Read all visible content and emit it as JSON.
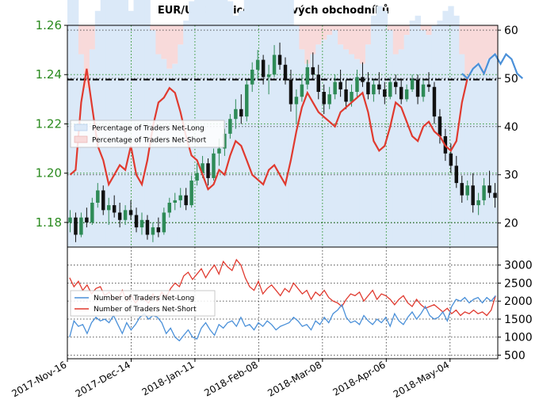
{
  "chart_data": {
    "type": "line",
    "title": "EUR/USD pozice retailových obchodníků",
    "x_tick_labels": [
      "2017-Nov-16",
      "2017-Dec-14",
      "2018-Jan-11",
      "2018-Feb-08",
      "2018-Mar-08",
      "2018-Apr-06",
      "2018-May-04"
    ],
    "colors": {
      "price_up": "#2e8b57",
      "price_down": "#111111",
      "net_long": "#4a90d9",
      "net_short": "#e03a2f",
      "long_fill": "#dbe9f8",
      "short_fill": "#f8dada",
      "grid": "#1e8c1e",
      "price_axis": "#2a8a1e"
    },
    "top_panel": {
      "left_axis": {
        "ylim": [
          1.17,
          1.26
        ],
        "tick_labels": [
          "1.18",
          "1.20",
          "1.22",
          "1.24",
          "1.26"
        ]
      },
      "right_axis": {
        "ylim": [
          15,
          61
        ],
        "tick_labels": [
          "20",
          "30",
          "40",
          "50",
          "60"
        ]
      },
      "reference_line": 1.238,
      "legend": {
        "placement": "left",
        "entries": [
          "Percentage of Traders Net-Long",
          "Percentage of Traders Net-Short"
        ]
      },
      "price_ohlc": [
        [
          1.18,
          1.185,
          1.176,
          1.182
        ],
        [
          1.182,
          1.184,
          1.172,
          1.175
        ],
        [
          1.175,
          1.184,
          1.174,
          1.182
        ],
        [
          1.182,
          1.186,
          1.178,
          1.18
        ],
        [
          1.18,
          1.19,
          1.179,
          1.188
        ],
        [
          1.188,
          1.196,
          1.186,
          1.193
        ],
        [
          1.193,
          1.195,
          1.183,
          1.185
        ],
        [
          1.185,
          1.19,
          1.179,
          1.187
        ],
        [
          1.187,
          1.191,
          1.182,
          1.184
        ],
        [
          1.184,
          1.188,
          1.178,
          1.181
        ],
        [
          1.181,
          1.187,
          1.179,
          1.185
        ],
        [
          1.185,
          1.189,
          1.181,
          1.183
        ],
        [
          1.183,
          1.186,
          1.176,
          1.178
        ],
        [
          1.178,
          1.184,
          1.175,
          1.181
        ],
        [
          1.181,
          1.183,
          1.173,
          1.175
        ],
        [
          1.175,
          1.18,
          1.172,
          1.178
        ],
        [
          1.178,
          1.182,
          1.174,
          1.176
        ],
        [
          1.176,
          1.186,
          1.175,
          1.184
        ],
        [
          1.184,
          1.19,
          1.182,
          1.188
        ],
        [
          1.188,
          1.192,
          1.185,
          1.189
        ],
        [
          1.189,
          1.194,
          1.186,
          1.191
        ],
        [
          1.191,
          1.194,
          1.185,
          1.187
        ],
        [
          1.187,
          1.199,
          1.186,
          1.197
        ],
        [
          1.197,
          1.204,
          1.195,
          1.2
        ],
        [
          1.2,
          1.207,
          1.198,
          1.204
        ],
        [
          1.204,
          1.206,
          1.195,
          1.198
        ],
        [
          1.198,
          1.21,
          1.197,
          1.208
        ],
        [
          1.208,
          1.214,
          1.203,
          1.21
        ],
        [
          1.21,
          1.218,
          1.207,
          1.216
        ],
        [
          1.216,
          1.224,
          1.214,
          1.222
        ],
        [
          1.222,
          1.23,
          1.218,
          1.226
        ],
        [
          1.226,
          1.232,
          1.22,
          1.223
        ],
        [
          1.223,
          1.238,
          1.221,
          1.236
        ],
        [
          1.236,
          1.245,
          1.233,
          1.242
        ],
        [
          1.242,
          1.25,
          1.238,
          1.246
        ],
        [
          1.246,
          1.248,
          1.236,
          1.239
        ],
        [
          1.239,
          1.244,
          1.232,
          1.24
        ],
        [
          1.24,
          1.252,
          1.239,
          1.248
        ],
        [
          1.248,
          1.253,
          1.242,
          1.244
        ],
        [
          1.244,
          1.247,
          1.236,
          1.238
        ],
        [
          1.238,
          1.242,
          1.225,
          1.228
        ],
        [
          1.228,
          1.234,
          1.22,
          1.231
        ],
        [
          1.231,
          1.24,
          1.229,
          1.236
        ],
        [
          1.236,
          1.246,
          1.234,
          1.243
        ],
        [
          1.243,
          1.249,
          1.238,
          1.24
        ],
        [
          1.24,
          1.244,
          1.23,
          1.233
        ],
        [
          1.233,
          1.236,
          1.224,
          1.228
        ],
        [
          1.228,
          1.235,
          1.226,
          1.232
        ],
        [
          1.232,
          1.24,
          1.23,
          1.237
        ],
        [
          1.237,
          1.242,
          1.231,
          1.234
        ],
        [
          1.234,
          1.238,
          1.226,
          1.229
        ],
        [
          1.229,
          1.236,
          1.227,
          1.233
        ],
        [
          1.233,
          1.242,
          1.231,
          1.239
        ],
        [
          1.239,
          1.245,
          1.235,
          1.237
        ],
        [
          1.237,
          1.241,
          1.23,
          1.232
        ],
        [
          1.232,
          1.238,
          1.229,
          1.236
        ],
        [
          1.236,
          1.241,
          1.232,
          1.234
        ],
        [
          1.234,
          1.237,
          1.228,
          1.231
        ],
        [
          1.231,
          1.239,
          1.23,
          1.237
        ],
        [
          1.237,
          1.24,
          1.232,
          1.235
        ],
        [
          1.235,
          1.238,
          1.228,
          1.23
        ],
        [
          1.23,
          1.236,
          1.229,
          1.234
        ],
        [
          1.234,
          1.24,
          1.233,
          1.238
        ],
        [
          1.238,
          1.24,
          1.228,
          1.231
        ],
        [
          1.231,
          1.238,
          1.229,
          1.236
        ],
        [
          1.236,
          1.241,
          1.233,
          1.235
        ],
        [
          1.235,
          1.237,
          1.22,
          1.223
        ],
        [
          1.223,
          1.226,
          1.212,
          1.215
        ],
        [
          1.215,
          1.218,
          1.205,
          1.208
        ],
        [
          1.208,
          1.212,
          1.2,
          1.203
        ],
        [
          1.203,
          1.207,
          1.194,
          1.196
        ],
        [
          1.196,
          1.199,
          1.188,
          1.191
        ],
        [
          1.191,
          1.197,
          1.189,
          1.195
        ],
        [
          1.195,
          1.2,
          1.184,
          1.187
        ],
        [
          1.187,
          1.192,
          1.183,
          1.189
        ],
        [
          1.189,
          1.198,
          1.187,
          1.195
        ],
        [
          1.195,
          1.201,
          1.19,
          1.192
        ],
        [
          1.192,
          1.196,
          1.186,
          1.19
        ]
      ],
      "pct_net_long": [
        null,
        null,
        null,
        null,
        null,
        null,
        null,
        null,
        null,
        null,
        null,
        null,
        null,
        null,
        null,
        null,
        null,
        null,
        null,
        null,
        null,
        null,
        null,
        null,
        null,
        null,
        null,
        null,
        null,
        null,
        null,
        null,
        null,
        null,
        null,
        null,
        null,
        null,
        null,
        null,
        null,
        null,
        null,
        null,
        null,
        null,
        null,
        null,
        null,
        null,
        null,
        null,
        null,
        null,
        null,
        null,
        null,
        null,
        null,
        null,
        null,
        null,
        null,
        null,
        null,
        null,
        null,
        null,
        null,
        null,
        null,
        51,
        50,
        52,
        53,
        51,
        54,
        55,
        53,
        55,
        54,
        51,
        50
      ],
      "pct_net_short": [
        30,
        31,
        45,
        52,
        44,
        36,
        33,
        28,
        30,
        32,
        31,
        36,
        30,
        28,
        33,
        40,
        45,
        46,
        48,
        47,
        43,
        38,
        34,
        33,
        30,
        27,
        28,
        31,
        30,
        34,
        37,
        36,
        33,
        30,
        29,
        28,
        31,
        32,
        30,
        28,
        33,
        39,
        44,
        47,
        45,
        43,
        42,
        41,
        40,
        43,
        44,
        45,
        46,
        47,
        43,
        37,
        35,
        36,
        40,
        45,
        44,
        41,
        38,
        37,
        40,
        41,
        39,
        38,
        36,
        35,
        37,
        45,
        50
      ]
    },
    "bottom_panel": {
      "ylim": [
        400,
        3500
      ],
      "tick_labels": [
        "500",
        "1000",
        "1500",
        "2000",
        "2500",
        "3000"
      ],
      "legend": {
        "placement": "left",
        "entries": [
          "Number of Traders Net-Long",
          "Number of Traders Net-Short"
        ]
      },
      "net_long": [
        1000,
        1450,
        1300,
        1350,
        1100,
        1400,
        1550,
        1450,
        1500,
        1400,
        1600,
        1350,
        1100,
        1400,
        1200,
        1350,
        1550,
        1650,
        1500,
        1600,
        1550,
        1400,
        1100,
        1250,
        1000,
        900,
        1050,
        1200,
        1000,
        950,
        1250,
        1400,
        1200,
        1050,
        1350,
        1250,
        1400,
        1450,
        1300,
        1550,
        1300,
        1350,
        1200,
        1400,
        1300,
        1450,
        1350,
        1200,
        1300,
        1350,
        1400,
        1550,
        1450,
        1300,
        1350,
        1200,
        1450,
        1350,
        1550,
        1400,
        1650,
        1750,
        1900,
        1550,
        1400,
        1450,
        1350,
        1600,
        1450,
        1350,
        1500,
        1400,
        1550,
        1300,
        1650,
        1450,
        1350,
        1550,
        1700,
        1500,
        1650,
        1850,
        1600,
        1500,
        1550,
        1700,
        1450,
        1850,
        2050,
        2000,
        2100,
        1950,
        2050,
        2100,
        1950,
        2100,
        2000,
        2150
      ],
      "net_short": [
        2650,
        2400,
        2550,
        2300,
        2450,
        2200,
        2350,
        2400,
        2150,
        2250,
        2100,
        2050,
        2300,
        2000,
        2150,
        1950,
        2100,
        2050,
        1950,
        2200,
        2000,
        2250,
        2100,
        2350,
        2500,
        2400,
        2700,
        2800,
        2600,
        2750,
        2900,
        2650,
        2850,
        3000,
        2750,
        3100,
        2950,
        2850,
        3150,
        3000,
        2650,
        2400,
        2300,
        2550,
        2200,
        2350,
        2450,
        2300,
        2150,
        2350,
        2250,
        2500,
        2350,
        2200,
        2300,
        2050,
        2250,
        2150,
        2300,
        2100,
        2000,
        1950,
        1850,
        2050,
        2200,
        2150,
        2250,
        2000,
        2150,
        2300,
        2050,
        2200,
        2150,
        2050,
        1900,
        2050,
        2150,
        1950,
        1850,
        2050,
        1900,
        1800,
        1850,
        1900,
        1800,
        1700,
        1800,
        1650,
        1750,
        1600,
        1700,
        1650,
        1750,
        1650,
        1700,
        1600,
        1750,
        2150
      ]
    }
  }
}
